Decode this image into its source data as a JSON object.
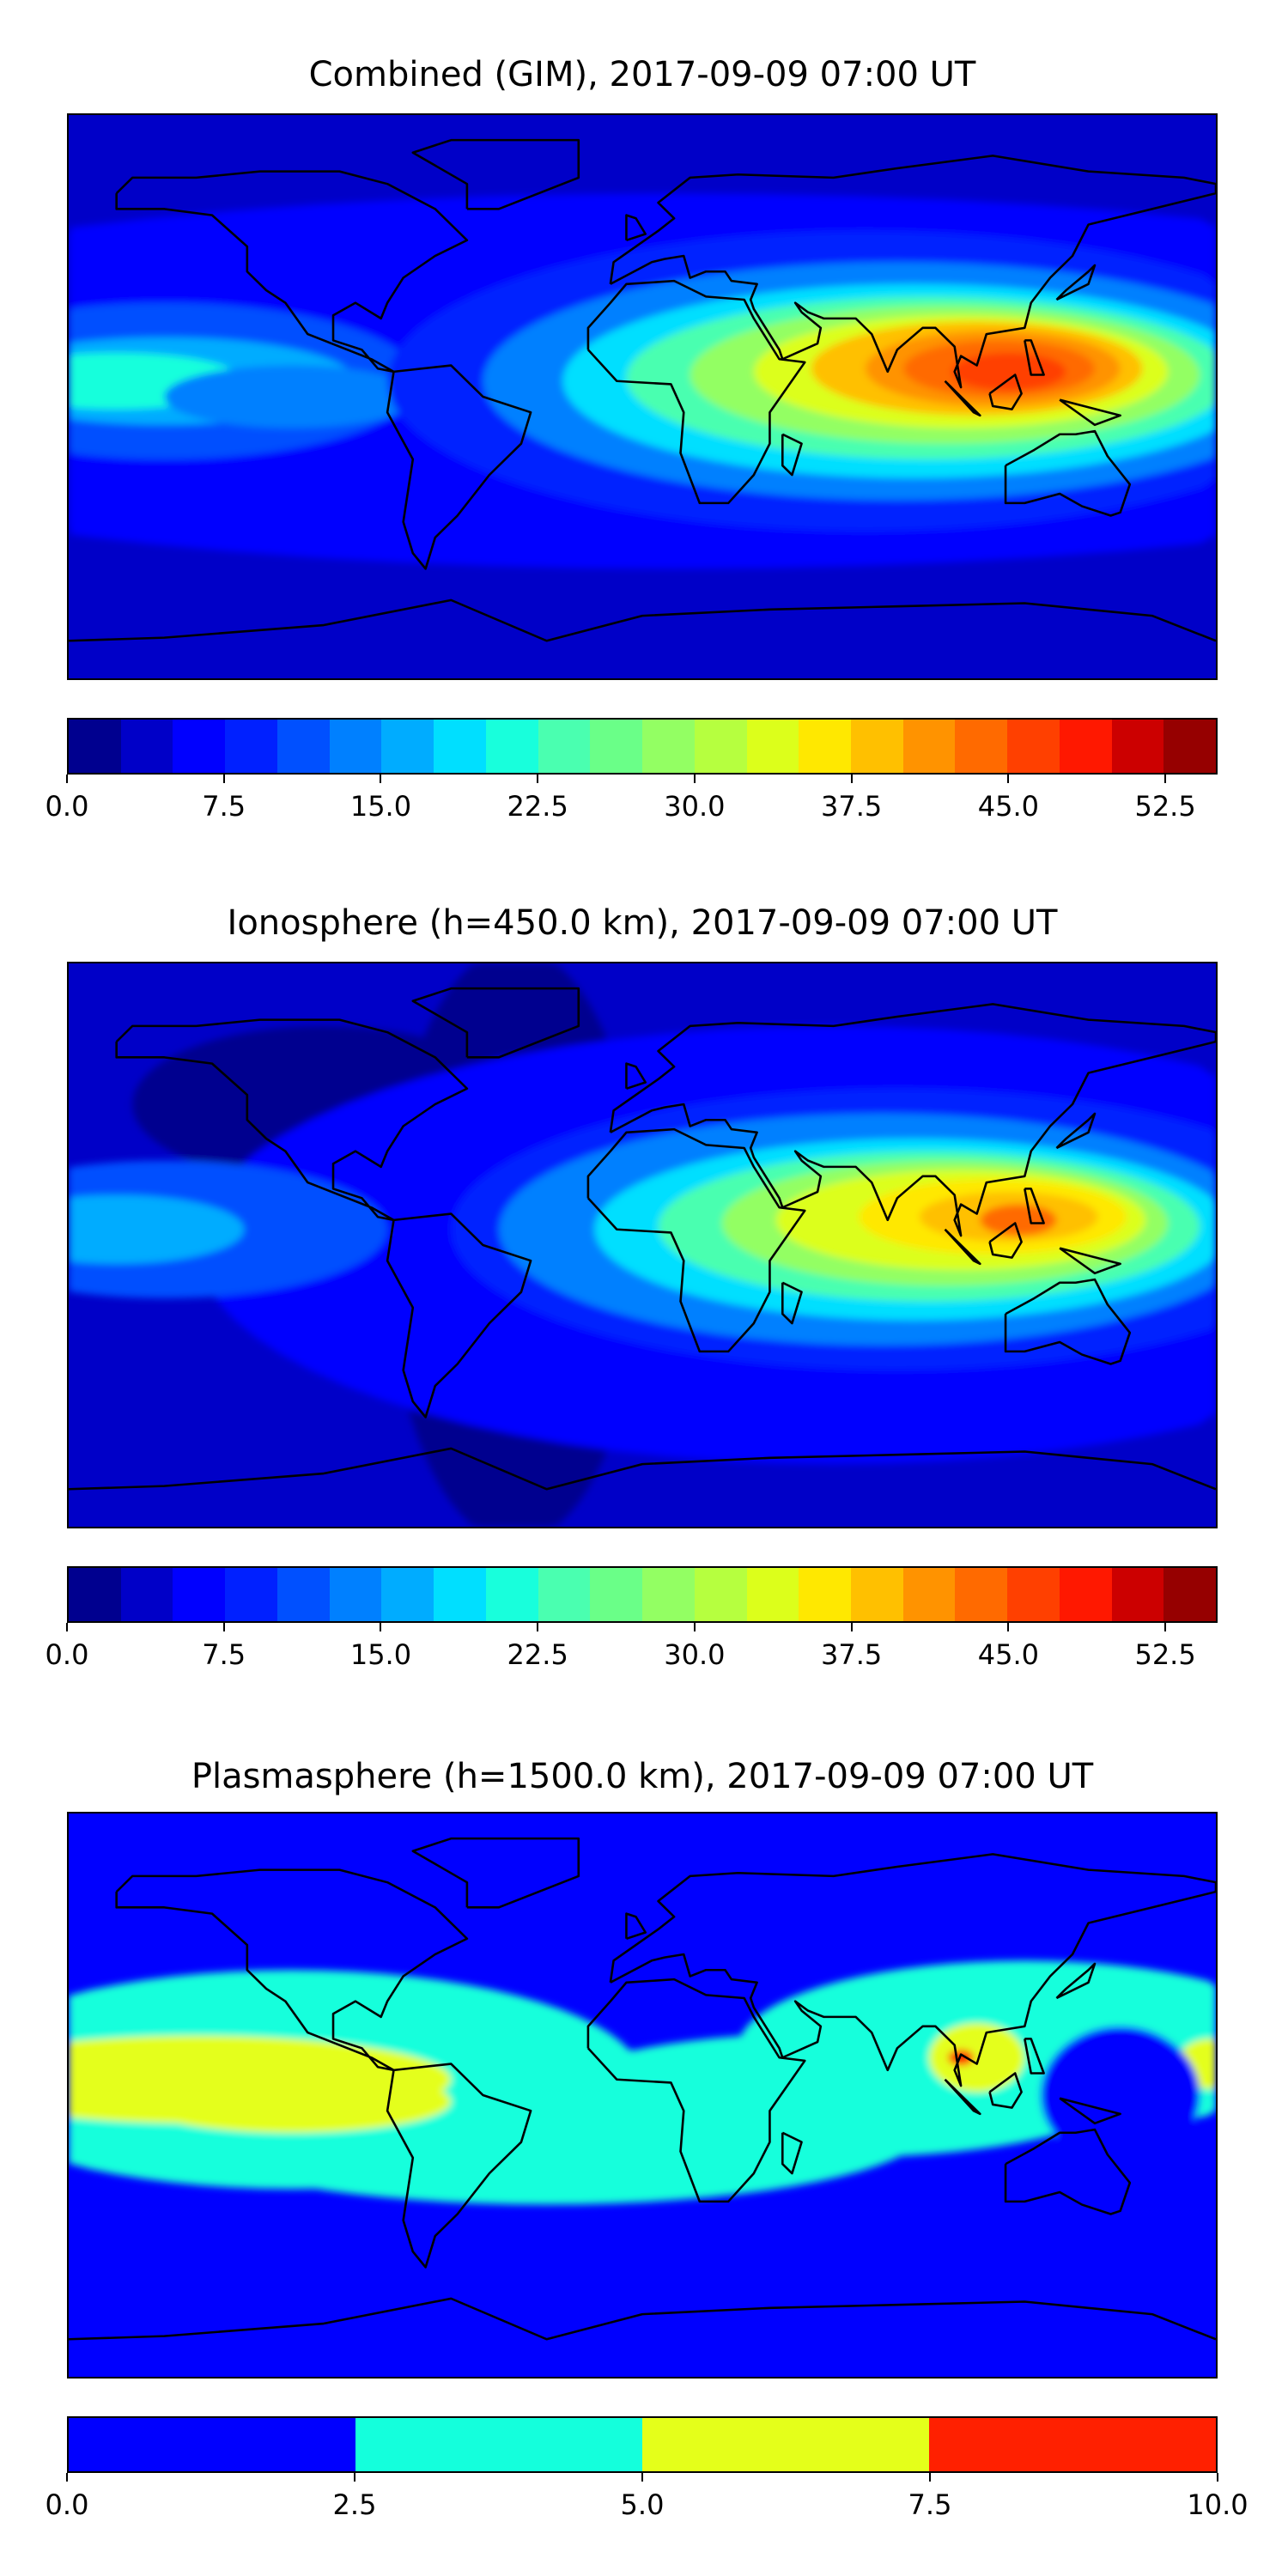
{
  "chart_data": [
    {
      "type": "heatmap",
      "panel": "combined",
      "title": "Combined (GIM), 2017-09-09 07:00 UT",
      "projection": "equirectangular world map with coastlines",
      "levels": [
        0,
        2.5,
        5,
        7.5,
        10,
        12.5,
        15,
        17.5,
        20,
        22.5,
        25,
        27.5,
        30,
        32.5,
        35,
        37.5,
        40,
        42.5,
        45,
        47.5,
        50,
        52.5,
        55
      ],
      "colors": [
        "#00008f",
        "#0000c8",
        "#0000ff",
        "#0020ff",
        "#0050ff",
        "#0080ff",
        "#00acff",
        "#00dfff",
        "#18ffdc",
        "#4affb0",
        "#6aff88",
        "#93ff63",
        "#b6ff3f",
        "#dcff1b",
        "#ffe800",
        "#ffc000",
        "#ff9300",
        "#ff6a00",
        "#ff4000",
        "#ff1800",
        "#cc0000",
        "#960000"
      ],
      "tick_labels": [
        "0.0",
        "7.5",
        "15.0",
        "22.5",
        "30.0",
        "37.5",
        "45.0",
        "52.5"
      ],
      "tick_values": [
        0,
        7.5,
        15,
        22.5,
        30,
        37.5,
        45,
        52.5
      ],
      "range": [
        0,
        55
      ],
      "max_region": "South-East Asia (~45-50)",
      "secondary_region": "Central Pacific (~20)"
    },
    {
      "type": "heatmap",
      "panel": "ionosphere",
      "title": "Ionosphere  (h=450.0 km), 2017-09-09 07:00 UT",
      "levels": [
        0,
        2.5,
        5,
        7.5,
        10,
        12.5,
        15,
        17.5,
        20,
        22.5,
        25,
        27.5,
        30,
        32.5,
        35,
        37.5,
        40,
        42.5,
        45,
        47.5,
        50,
        52.5,
        55
      ],
      "colors": [
        "#00008f",
        "#0000c8",
        "#0000ff",
        "#0020ff",
        "#0050ff",
        "#0080ff",
        "#00acff",
        "#00dfff",
        "#18ffdc",
        "#4affb0",
        "#6aff88",
        "#93ff63",
        "#b6ff3f",
        "#dcff1b",
        "#ffe800",
        "#ffc000",
        "#ff9300",
        "#ff6a00",
        "#ff4000",
        "#ff1800",
        "#cc0000",
        "#960000"
      ],
      "tick_labels": [
        "0.0",
        "7.5",
        "15.0",
        "22.5",
        "30.0",
        "37.5",
        "45.0",
        "52.5"
      ],
      "tick_values": [
        0,
        7.5,
        15,
        22.5,
        30,
        37.5,
        45,
        52.5
      ],
      "range": [
        0,
        55
      ],
      "max_region": "South-East Asia (~40-45)"
    },
    {
      "type": "heatmap",
      "panel": "plasmasphere",
      "title": "Plasmasphere (h=1500.0 km), 2017-09-09 07:00 UT",
      "levels": [
        0,
        2.5,
        5,
        7.5,
        10
      ],
      "colors": [
        "#0000ff",
        "#14ffdc",
        "#e4ff1a",
        "#ff2000"
      ],
      "tick_labels": [
        "0.0",
        "2.5",
        "5.0",
        "7.5",
        "10.0"
      ],
      "tick_values": [
        0,
        2.5,
        5,
        7.5,
        10
      ],
      "range": [
        0,
        10
      ],
      "max_region": "Bay of Bengal / Indochina (7.5-10)"
    }
  ]
}
